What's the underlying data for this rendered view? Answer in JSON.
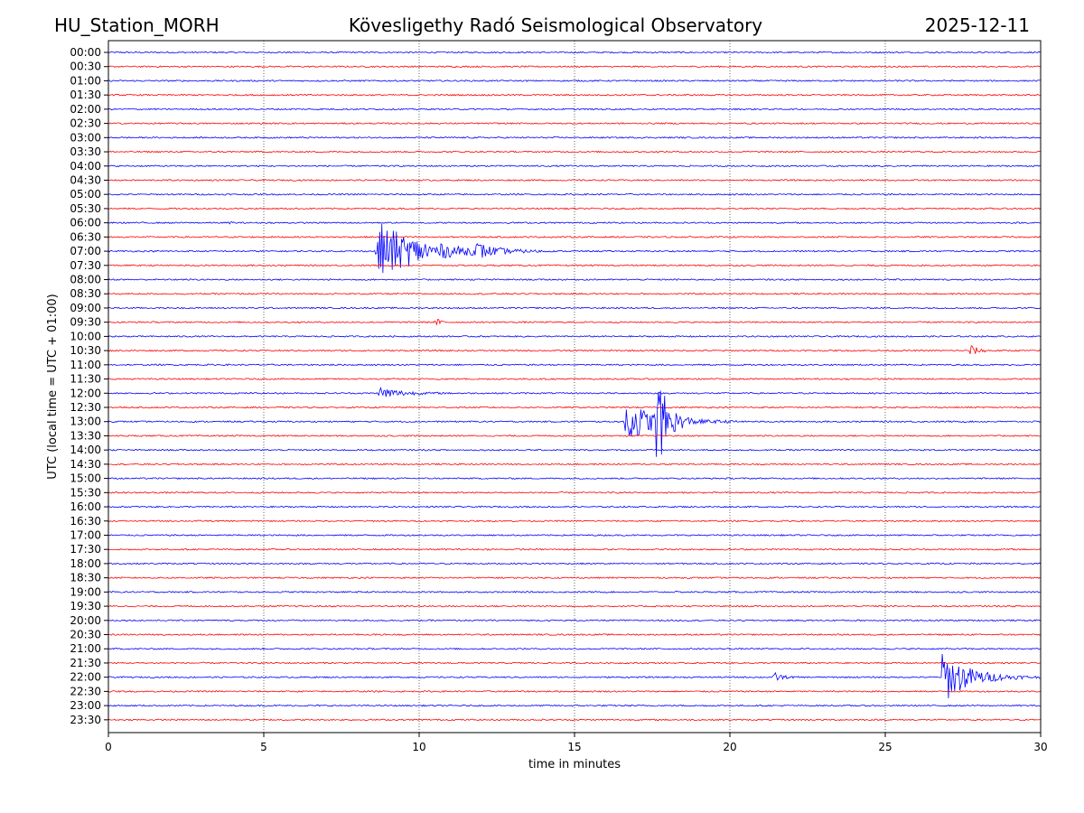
{
  "header": {
    "station": "HU_Station_MORH",
    "observatory": "Kövesligethy Radó Seismological Observatory",
    "date": "2025-12-11"
  },
  "chart_data": {
    "type": "line",
    "subtype": "helicorder",
    "title": "Kövesligethy Radó Seismological Observatory",
    "xlabel": "time in minutes",
    "ylabel": "UTC (local time = UTC + 01:00)",
    "xlim": [
      0,
      30
    ],
    "x_ticks": [
      "0",
      "5",
      "10",
      "15",
      "20",
      "25",
      "30"
    ],
    "row_labels": [
      "00:00",
      "00:30",
      "01:00",
      "01:30",
      "02:00",
      "02:30",
      "03:00",
      "03:30",
      "04:00",
      "04:30",
      "05:00",
      "05:30",
      "06:00",
      "06:30",
      "07:00",
      "07:30",
      "08:00",
      "08:30",
      "09:00",
      "09:30",
      "10:00",
      "10:30",
      "11:00",
      "11:30",
      "12:00",
      "12:30",
      "13:00",
      "13:30",
      "14:00",
      "14:30",
      "15:00",
      "15:30",
      "16:00",
      "16:30",
      "17:00",
      "17:30",
      "18:00",
      "18:30",
      "19:00",
      "19:30",
      "20:00",
      "20:30",
      "21:00",
      "21:30",
      "22:00",
      "22:30",
      "23:00",
      "23:30"
    ],
    "trace_colors": [
      "#0000ff",
      "#ff0000"
    ],
    "grid": "vertical dotted lines at x ticks",
    "noise_amplitude": 0.05,
    "events": [
      {
        "row": "06:00",
        "start_min": 3.9,
        "peak": 0.15,
        "duration_min": 0.3
      },
      {
        "row": "07:00",
        "start_min": 8.6,
        "peak": 2.2,
        "duration_min": 5.5
      },
      {
        "row": "07:00",
        "start_min": 11.8,
        "peak": 0.55,
        "duration_min": 1.6
      },
      {
        "row": "09:30",
        "start_min": 10.5,
        "peak": 0.35,
        "duration_min": 0.6
      },
      {
        "row": "10:30",
        "start_min": 27.7,
        "peak": 0.5,
        "duration_min": 0.9
      },
      {
        "row": "12:00",
        "start_min": 8.7,
        "peak": 0.5,
        "duration_min": 2.5
      },
      {
        "row": "13:00",
        "start_min": 16.6,
        "peak": 1.6,
        "duration_min": 3.8
      },
      {
        "row": "13:00",
        "start_min": 17.6,
        "peak": 3.7,
        "duration_min": 1.2
      },
      {
        "row": "22:00",
        "start_min": 21.4,
        "peak": 0.4,
        "duration_min": 0.9
      },
      {
        "row": "22:00",
        "start_min": 26.8,
        "peak": 2.0,
        "duration_min": 3.2
      }
    ]
  }
}
